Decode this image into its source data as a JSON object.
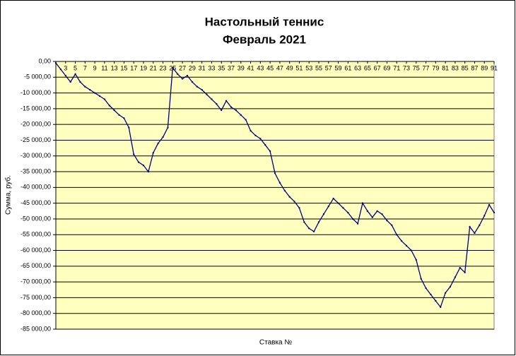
{
  "chart_data": {
    "type": "line",
    "title": [
      "Настольный теннис",
      "Февраль 2021"
    ],
    "x_label": "Ставка №",
    "y_label": "Сумма, руб.",
    "x": [
      1,
      2,
      3,
      4,
      5,
      6,
      7,
      8,
      9,
      10,
      11,
      12,
      13,
      14,
      15,
      16,
      17,
      18,
      19,
      20,
      21,
      22,
      23,
      24,
      25,
      26,
      27,
      28,
      29,
      30,
      31,
      32,
      33,
      34,
      35,
      36,
      37,
      38,
      39,
      40,
      41,
      42,
      43,
      44,
      45,
      46,
      47,
      48,
      49,
      50,
      51,
      52,
      53,
      54,
      55,
      56,
      57,
      58,
      59,
      60,
      61,
      62,
      63,
      64,
      65,
      66,
      67,
      68,
      69,
      70,
      71,
      72,
      73,
      74,
      75,
      76,
      77,
      78,
      79,
      80,
      81,
      82,
      83,
      84,
      85,
      86,
      87,
      88,
      89,
      90,
      91
    ],
    "series": [
      {
        "name": "Сумма",
        "color": "#000080",
        "values": [
          -500,
          -2500,
          -4500,
          -6500,
          -4000,
          -6500,
          -8000,
          -9000,
          -10000,
          -11000,
          -12000,
          -14000,
          -15500,
          -17000,
          -18000,
          -21000,
          -29500,
          -32000,
          -33000,
          -35000,
          -29000,
          -26000,
          -24000,
          -21000,
          -2000,
          -4000,
          -5500,
          -4500,
          -6500,
          -8000,
          -9000,
          -10500,
          -12000,
          -13500,
          -15500,
          -12500,
          -14500,
          -15500,
          -17000,
          -18500,
          -22000,
          -23500,
          -24500,
          -26500,
          -28500,
          -35500,
          -38500,
          -41000,
          -43000,
          -44500,
          -46500,
          -51000,
          -53000,
          -54000,
          -51000,
          -48500,
          -46000,
          -43500,
          -45000,
          -46500,
          -48000,
          -50000,
          -51500,
          -45000,
          -47500,
          -49500,
          -47500,
          -48500,
          -50500,
          -52000,
          -55000,
          -57000,
          -58500,
          -60000,
          -63000,
          -69000,
          -72000,
          -74000,
          -76000,
          -78000,
          -73500,
          -71500,
          -68500,
          -65500,
          -67000,
          -52500,
          -54500,
          -52000,
          -49000,
          -45500,
          -48000
        ]
      }
    ],
    "xlim": [
      1,
      91
    ],
    "xticks": [
      3,
      5,
      7,
      9,
      11,
      13,
      15,
      17,
      19,
      21,
      23,
      25,
      27,
      29,
      31,
      33,
      35,
      37,
      39,
      41,
      43,
      45,
      47,
      49,
      51,
      53,
      55,
      57,
      59,
      61,
      63,
      65,
      67,
      69,
      71,
      73,
      75,
      77,
      79,
      81,
      83,
      85,
      87,
      89,
      91
    ],
    "ylim": [
      -85000,
      0
    ],
    "yticks": [
      {
        "value": 0,
        "label": "0,00"
      },
      {
        "value": -5000,
        "label": "-5 000,00"
      },
      {
        "value": -10000,
        "label": "-10 000,00"
      },
      {
        "value": -15000,
        "label": "-15 000,00"
      },
      {
        "value": -20000,
        "label": "-20 000,00"
      },
      {
        "value": -25000,
        "label": "-25 000,00"
      },
      {
        "value": -30000,
        "label": "-30 000,00"
      },
      {
        "value": -35000,
        "label": "-35 000,00"
      },
      {
        "value": -40000,
        "label": "-40 000,00"
      },
      {
        "value": -45000,
        "label": "-45 000,00"
      },
      {
        "value": -50000,
        "label": "-50 000,00"
      },
      {
        "value": -55000,
        "label": "-55 000,00"
      },
      {
        "value": -60000,
        "label": "-60 000,00"
      },
      {
        "value": -65000,
        "label": "-65 000,00"
      },
      {
        "value": -70000,
        "label": "-70 000,00"
      },
      {
        "value": -75000,
        "label": "-75 000,00"
      },
      {
        "value": -80000,
        "label": "-80 000,00"
      },
      {
        "value": -85000,
        "label": "-85 000,00"
      }
    ],
    "grid": true,
    "plot_background": "#ffffc0"
  }
}
